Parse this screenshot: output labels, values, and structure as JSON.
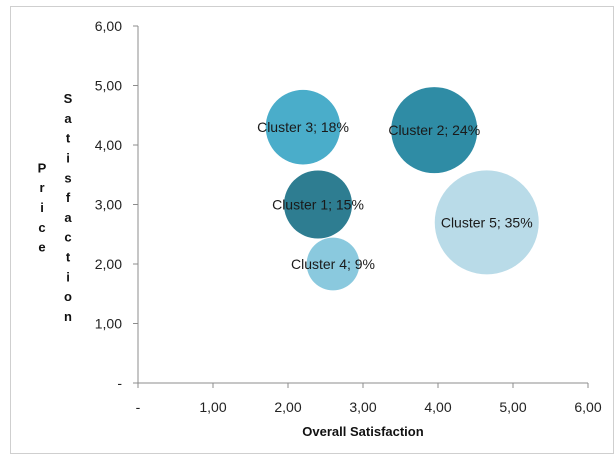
{
  "chart_data": {
    "type": "bubble",
    "xlabel": "Overall Satisfaction",
    "ylabel_lines": [
      "Price",
      "Satisfaction"
    ],
    "xlim": [
      0,
      6
    ],
    "ylim": [
      0,
      6
    ],
    "x_ticks": [
      "-",
      "1,00",
      "2,00",
      "3,00",
      "4,00",
      "5,00",
      "6,00"
    ],
    "y_ticks": [
      "-",
      "1,00",
      "2,00",
      "3,00",
      "4,00",
      "5,00",
      "6,00"
    ],
    "grid": false,
    "legend": "none",
    "series": [
      {
        "name": "Cluster 1",
        "x": 2.4,
        "y": 3.0,
        "share": 15,
        "label": "Cluster 1; 15%",
        "color": "#2e7d91"
      },
      {
        "name": "Cluster 2",
        "x": 3.95,
        "y": 4.25,
        "share": 24,
        "label": "Cluster 2; 24%",
        "color": "#2f8ca5"
      },
      {
        "name": "Cluster 3",
        "x": 2.2,
        "y": 4.3,
        "share": 18,
        "label": "Cluster 3; 18%",
        "color": "#4aadca"
      },
      {
        "name": "Cluster 4",
        "x": 2.6,
        "y": 2.0,
        "share": 9,
        "label": "Cluster 4; 9%",
        "color": "#8ac9de"
      },
      {
        "name": "Cluster 5",
        "x": 4.65,
        "y": 2.7,
        "share": 35,
        "label": "Cluster 5; 35%",
        "color": "#b9dbe8"
      }
    ]
  }
}
